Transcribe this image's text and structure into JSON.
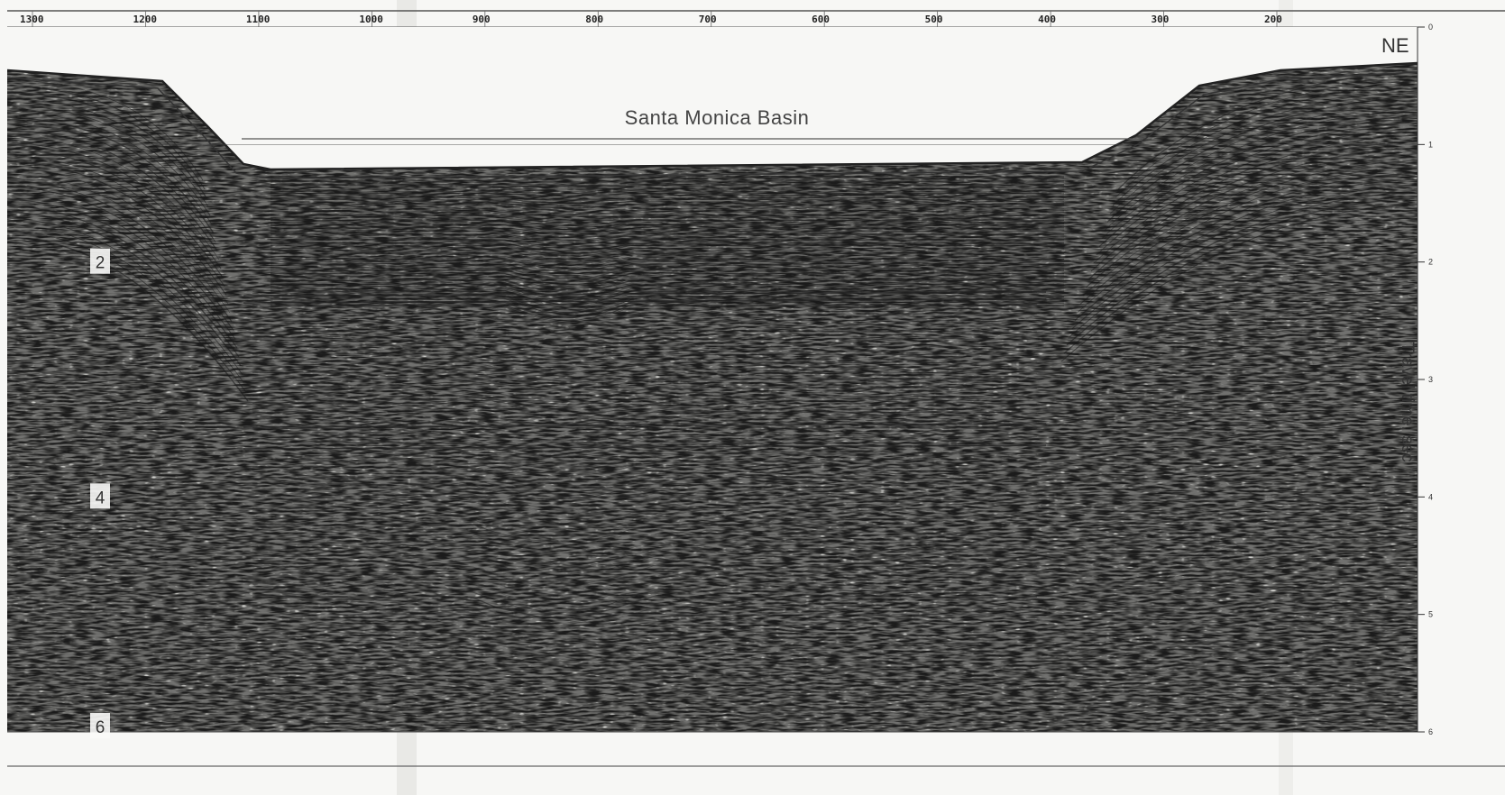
{
  "figure": {
    "basin_label": "Santa Monica Basin",
    "direction_label": "NE",
    "axis_title": "Travel time, sec",
    "shotpoint_labels": [
      "1300",
      "1200",
      "1100",
      "1000",
      "900",
      "800",
      "700",
      "600",
      "500",
      "400",
      "300",
      "200"
    ],
    "time_ticks": [
      {
        "value": 0,
        "label": "0"
      },
      {
        "value": 1,
        "label": "1"
      },
      {
        "value": 2,
        "label": "2"
      },
      {
        "value": 3,
        "label": "3"
      },
      {
        "value": 4,
        "label": "4"
      },
      {
        "value": 5,
        "label": "5"
      },
      {
        "value": 6,
        "label": "6"
      }
    ],
    "left_time_labels": [
      {
        "value": 2,
        "label": "2"
      },
      {
        "value": 4,
        "label": "4"
      },
      {
        "value": 6,
        "label": "6"
      }
    ]
  }
}
